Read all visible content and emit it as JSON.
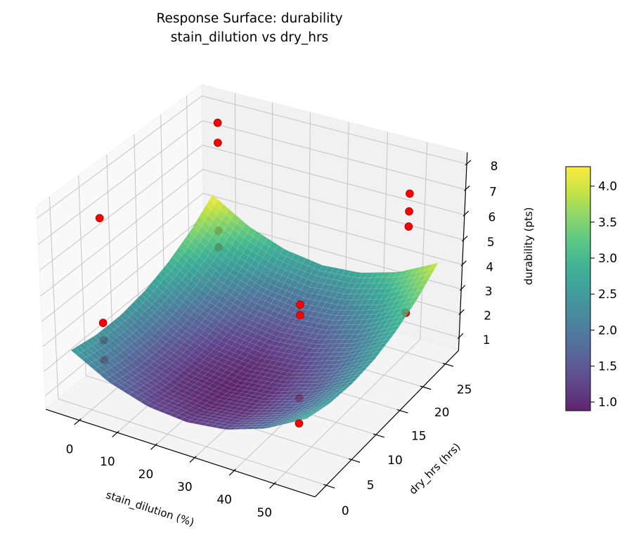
{
  "chart_data": {
    "type": "surface",
    "title": [
      "Response Surface: durability",
      "stain_dilution vs dry_hrs"
    ],
    "xlabel": "stain_dilution (%)",
    "ylabel": "dry_hrs (hrs)",
    "zlabel": "durability (pts)",
    "xlim": [
      -9,
      60
    ],
    "ylim": [
      -2.2,
      28
    ],
    "zlim": [
      0.45,
      8.45
    ],
    "xticks": [
      0,
      10,
      20,
      30,
      40,
      50
    ],
    "yticks": [
      0,
      5,
      10,
      15,
      20,
      25
    ],
    "zticks": [
      1,
      2,
      3,
      4,
      5,
      6,
      7,
      8
    ],
    "grid": true,
    "colormap": "viridis",
    "surface": {
      "x": [
        -5,
        5,
        15,
        25,
        35,
        45,
        55
      ],
      "y": [
        0,
        4.5,
        9,
        13.5,
        18,
        22.5,
        27
      ],
      "z": [
        [
          2.63,
          1.8,
          1.32,
          1.19,
          1.39,
          1.94,
          2.83
        ],
        [
          2.42,
          1.58,
          1.09,
          0.94,
          1.13,
          1.67,
          2.55
        ],
        [
          2.4,
          1.55,
          1.05,
          0.88,
          1.07,
          1.59,
          2.46
        ],
        [
          2.58,
          1.72,
          1.2,
          1.02,
          1.19,
          1.71,
          2.56
        ],
        [
          2.95,
          2.08,
          1.55,
          1.36,
          1.52,
          2.01,
          2.86
        ],
        [
          3.51,
          2.63,
          2.09,
          1.89,
          2.03,
          2.52,
          3.35
        ],
        [
          4.27,
          3.37,
          2.82,
          2.61,
          2.74,
          3.21,
          4.03
        ]
      ]
    },
    "points": {
      "color": "#ff0000",
      "x": [
        0,
        0,
        0,
        0,
        0,
        0,
        0,
        0,
        50,
        50,
        50,
        50,
        50,
        50,
        50,
        50
      ],
      "y": [
        2.5,
        2.5,
        2.5,
        2.5,
        24.5,
        24.5,
        24.5,
        24.5,
        24.5,
        24.5,
        24.5,
        24.5,
        2.5,
        2.5,
        2.5,
        2.5
      ],
      "z": [
        7.6,
        3.5,
        2.8,
        2.0,
        7.8,
        7.0,
        3.4,
        2.7,
        7.0,
        6.3,
        5.7,
        2.2,
        6.5,
        6.1,
        2.9,
        1.9
      ]
    },
    "colorbar": {
      "range": [
        0.88,
        4.27
      ],
      "ticks": [
        1.0,
        1.5,
        2.0,
        2.5,
        3.0,
        3.5,
        4.0
      ],
      "tick_labels": [
        "1.0",
        "1.5",
        "2.0",
        "2.5",
        "3.0",
        "3.5",
        "4.0"
      ]
    }
  }
}
